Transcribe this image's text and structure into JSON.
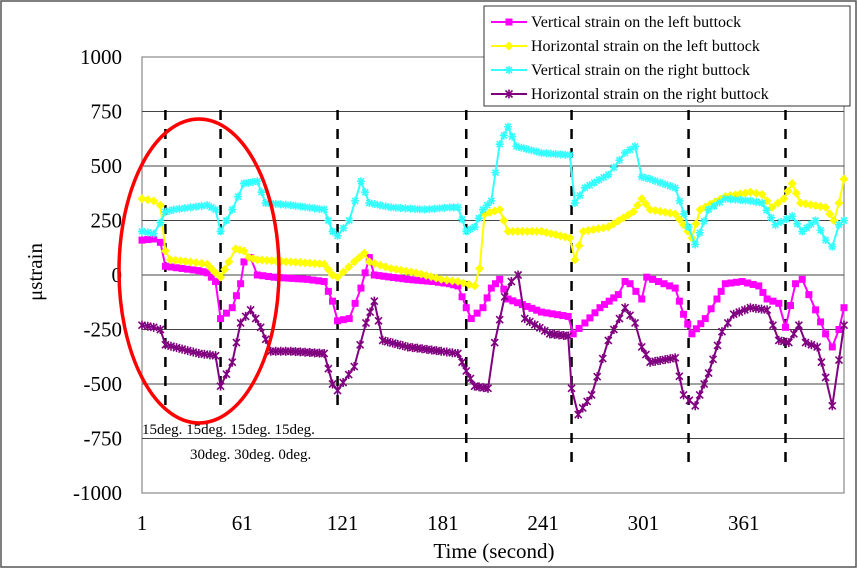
{
  "chart_data": {
    "type": "line",
    "title": "",
    "xlabel": "Time (second)",
    "ylabel": "μstrain",
    "xlim": [
      1,
      421
    ],
    "ylim": [
      -1000,
      1000
    ],
    "x_ticks": [
      1,
      61,
      121,
      181,
      241,
      301,
      361
    ],
    "y_ticks": [
      1000,
      750,
      500,
      250,
      0,
      -250,
      -500,
      -750,
      -1000
    ],
    "x_tick_labels": [
      "1",
      "61",
      "121",
      "181",
      "241",
      "301",
      "361"
    ],
    "y_tick_labels": [
      "1000",
      "750",
      "500",
      "250",
      "0",
      "-250",
      "-500",
      "-750",
      "-1000"
    ],
    "grid": "horizontal",
    "legend_position": "top-right",
    "series": [
      {
        "name": "Vertical strain on the left buttock",
        "color": "#ff00ff",
        "marker": "square",
        "points": [
          [
            1,
            160
          ],
          [
            8,
            165
          ],
          [
            12,
            150
          ],
          [
            15,
            40
          ],
          [
            25,
            30
          ],
          [
            35,
            20
          ],
          [
            40,
            10
          ],
          [
            45,
            -30
          ],
          [
            48,
            -200
          ],
          [
            55,
            -150
          ],
          [
            60,
            -40
          ],
          [
            62,
            60
          ],
          [
            66,
            80
          ],
          [
            70,
            0
          ],
          [
            80,
            -10
          ],
          [
            100,
            -20
          ],
          [
            110,
            -30
          ],
          [
            115,
            -120
          ],
          [
            118,
            -210
          ],
          [
            125,
            -200
          ],
          [
            132,
            -60
          ],
          [
            137,
            80
          ],
          [
            140,
            0
          ],
          [
            160,
            -20
          ],
          [
            175,
            -30
          ],
          [
            185,
            -40
          ],
          [
            190,
            -50
          ],
          [
            195,
            -150
          ],
          [
            198,
            -200
          ],
          [
            205,
            -150
          ],
          [
            210,
            -60
          ],
          [
            215,
            -20
          ],
          [
            220,
            -110
          ],
          [
            240,
            -170
          ],
          [
            256,
            -190
          ],
          [
            259,
            -270
          ],
          [
            266,
            -220
          ],
          [
            275,
            -150
          ],
          [
            286,
            -90
          ],
          [
            290,
            -30
          ],
          [
            293,
            -40
          ],
          [
            300,
            -110
          ],
          [
            303,
            -10
          ],
          [
            310,
            -30
          ],
          [
            320,
            -60
          ],
          [
            325,
            -180
          ],
          [
            330,
            -270
          ],
          [
            338,
            -200
          ],
          [
            345,
            -110
          ],
          [
            350,
            -40
          ],
          [
            360,
            -30
          ],
          [
            370,
            -50
          ],
          [
            375,
            -110
          ],
          [
            382,
            -130
          ],
          [
            386,
            -240
          ],
          [
            392,
            -40
          ],
          [
            396,
            -20
          ],
          [
            400,
            -90
          ],
          [
            404,
            -160
          ],
          [
            410,
            -270
          ],
          [
            414,
            -330
          ],
          [
            418,
            -250
          ],
          [
            421,
            -150
          ]
        ]
      },
      {
        "name": "Horizontal strain on the left buttock",
        "color": "#ffff00",
        "marker": "diamond",
        "points": [
          [
            1,
            350
          ],
          [
            8,
            340
          ],
          [
            12,
            320
          ],
          [
            15,
            110
          ],
          [
            18,
            70
          ],
          [
            30,
            60
          ],
          [
            40,
            50
          ],
          [
            45,
            10
          ],
          [
            48,
            -10
          ],
          [
            53,
            60
          ],
          [
            57,
            120
          ],
          [
            62,
            110
          ],
          [
            65,
            80
          ],
          [
            70,
            70
          ],
          [
            90,
            60
          ],
          [
            110,
            50
          ],
          [
            115,
            0
          ],
          [
            118,
            -10
          ],
          [
            128,
            60
          ],
          [
            134,
            100
          ],
          [
            137,
            60
          ],
          [
            150,
            30
          ],
          [
            165,
            10
          ],
          [
            180,
            -20
          ],
          [
            190,
            -30
          ],
          [
            200,
            -50
          ],
          [
            203,
            30
          ],
          [
            206,
            280
          ],
          [
            215,
            300
          ],
          [
            220,
            200
          ],
          [
            240,
            200
          ],
          [
            257,
            170
          ],
          [
            260,
            70
          ],
          [
            265,
            200
          ],
          [
            280,
            220
          ],
          [
            295,
            290
          ],
          [
            300,
            350
          ],
          [
            305,
            300
          ],
          [
            320,
            280
          ],
          [
            325,
            230
          ],
          [
            330,
            170
          ],
          [
            335,
            300
          ],
          [
            350,
            360
          ],
          [
            365,
            380
          ],
          [
            372,
            370
          ],
          [
            378,
            310
          ],
          [
            385,
            350
          ],
          [
            390,
            420
          ],
          [
            395,
            330
          ],
          [
            410,
            310
          ],
          [
            415,
            250
          ],
          [
            418,
            330
          ],
          [
            421,
            440
          ]
        ]
      },
      {
        "name": "Vertical strain on the right buttock",
        "color": "#33ffff",
        "marker": "asterisk",
        "points": [
          [
            1,
            200
          ],
          [
            8,
            190
          ],
          [
            12,
            240
          ],
          [
            15,
            290
          ],
          [
            20,
            300
          ],
          [
            30,
            310
          ],
          [
            40,
            320
          ],
          [
            45,
            300
          ],
          [
            48,
            200
          ],
          [
            55,
            300
          ],
          [
            62,
            420
          ],
          [
            70,
            430
          ],
          [
            75,
            330
          ],
          [
            90,
            320
          ],
          [
            110,
            300
          ],
          [
            115,
            200
          ],
          [
            118,
            180
          ],
          [
            125,
            250
          ],
          [
            132,
            430
          ],
          [
            137,
            330
          ],
          [
            150,
            310
          ],
          [
            170,
            300
          ],
          [
            185,
            310
          ],
          [
            190,
            310
          ],
          [
            195,
            200
          ],
          [
            200,
            220
          ],
          [
            205,
            300
          ],
          [
            210,
            340
          ],
          [
            215,
            600
          ],
          [
            220,
            680
          ],
          [
            225,
            590
          ],
          [
            240,
            560
          ],
          [
            257,
            550
          ],
          [
            260,
            330
          ],
          [
            266,
            400
          ],
          [
            280,
            460
          ],
          [
            290,
            560
          ],
          [
            296,
            590
          ],
          [
            300,
            450
          ],
          [
            305,
            440
          ],
          [
            320,
            400
          ],
          [
            328,
            220
          ],
          [
            332,
            140
          ],
          [
            340,
            300
          ],
          [
            350,
            350
          ],
          [
            365,
            340
          ],
          [
            372,
            330
          ],
          [
            380,
            230
          ],
          [
            390,
            270
          ],
          [
            396,
            200
          ],
          [
            404,
            250
          ],
          [
            410,
            160
          ],
          [
            414,
            130
          ],
          [
            418,
            230
          ],
          [
            421,
            250
          ]
        ]
      },
      {
        "name": "Horizontal strain on the right buttock",
        "color": "#800080",
        "marker": "star",
        "points": [
          [
            1,
            -230
          ],
          [
            8,
            -240
          ],
          [
            12,
            -250
          ],
          [
            15,
            -320
          ],
          [
            25,
            -340
          ],
          [
            35,
            -360
          ],
          [
            45,
            -370
          ],
          [
            48,
            -510
          ],
          [
            55,
            -400
          ],
          [
            60,
            -220
          ],
          [
            66,
            -160
          ],
          [
            72,
            -240
          ],
          [
            78,
            -350
          ],
          [
            90,
            -350
          ],
          [
            110,
            -360
          ],
          [
            115,
            -500
          ],
          [
            118,
            -530
          ],
          [
            128,
            -420
          ],
          [
            135,
            -220
          ],
          [
            140,
            -120
          ],
          [
            145,
            -300
          ],
          [
            160,
            -330
          ],
          [
            180,
            -350
          ],
          [
            190,
            -360
          ],
          [
            195,
            -440
          ],
          [
            200,
            -510
          ],
          [
            208,
            -520
          ],
          [
            212,
            -310
          ],
          [
            218,
            -100
          ],
          [
            222,
            -30
          ],
          [
            226,
            0
          ],
          [
            230,
            -200
          ],
          [
            245,
            -270
          ],
          [
            256,
            -280
          ],
          [
            258,
            -520
          ],
          [
            262,
            -640
          ],
          [
            270,
            -550
          ],
          [
            280,
            -300
          ],
          [
            290,
            -150
          ],
          [
            296,
            -220
          ],
          [
            300,
            -330
          ],
          [
            305,
            -400
          ],
          [
            320,
            -380
          ],
          [
            325,
            -550
          ],
          [
            332,
            -600
          ],
          [
            340,
            -450
          ],
          [
            348,
            -260
          ],
          [
            355,
            -180
          ],
          [
            365,
            -150
          ],
          [
            375,
            -160
          ],
          [
            382,
            -300
          ],
          [
            388,
            -310
          ],
          [
            394,
            -230
          ],
          [
            398,
            -310
          ],
          [
            405,
            -330
          ],
          [
            410,
            -470
          ],
          [
            414,
            -600
          ],
          [
            418,
            -390
          ],
          [
            421,
            -230
          ]
        ]
      }
    ],
    "vertical_dashed_lines_x": [
      15,
      48,
      118,
      195,
      258,
      328,
      386
    ],
    "annotations": [
      "15deg. 15deg. 15deg. 15deg.",
      "30deg. 30deg. 0deg."
    ],
    "highlight": {
      "shape": "ellipse",
      "color": "#ff0000"
    }
  }
}
